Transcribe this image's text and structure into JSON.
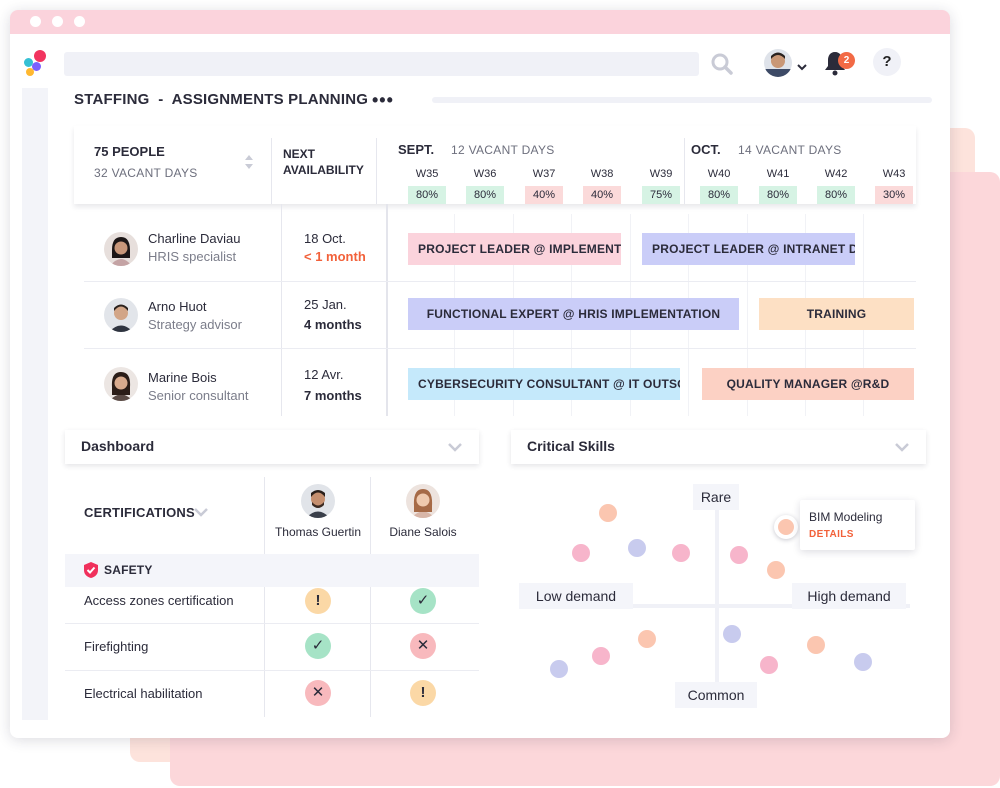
{
  "colors": {
    "accent_orange": "#f2613a",
    "pct_green_bg": "#d6f3e4",
    "pct_red_bg": "#fbdada",
    "bar_pink": "#fbd3dc",
    "bar_lavender": "#cacdf8",
    "bar_peach": "#fde0c4",
    "bar_blue": "#c5e9fb",
    "bar_salmon": "#fcd1c4"
  },
  "header": {
    "notifications_count": "2",
    "help_label": "?"
  },
  "page": {
    "title": "STAFFING  -  ASSIGNMENTS PLANNING",
    "more_label": "•••"
  },
  "planning": {
    "people_count": "75 PEOPLE",
    "people_vacant": "32 VACANT DAYS",
    "next_availability": "NEXT AVAILABILITY",
    "months": [
      {
        "name": "SEPT.",
        "vacant": "12 VACANT DAYS"
      },
      {
        "name": "OCT.",
        "vacant": "14 VACANT DAYS"
      }
    ],
    "weeks": [
      {
        "label": "W35",
        "pct": "80%",
        "level": "good"
      },
      {
        "label": "W36",
        "pct": "80%",
        "level": "good"
      },
      {
        "label": "W37",
        "pct": "40%",
        "level": "low"
      },
      {
        "label": "W38",
        "pct": "40%",
        "level": "low"
      },
      {
        "label": "W39",
        "pct": "75%",
        "level": "good"
      },
      {
        "label": "W40",
        "pct": "80%",
        "level": "good"
      },
      {
        "label": "W41",
        "pct": "80%",
        "level": "good"
      },
      {
        "label": "W42",
        "pct": "80%",
        "level": "good"
      },
      {
        "label": "W43",
        "pct": "30%",
        "level": "low"
      }
    ],
    "people": [
      {
        "name": "Charline Daviau",
        "role": "HRIS specialist",
        "date": "18 Oct.",
        "duration": "< 1 month",
        "urgent": true,
        "assignments": [
          {
            "label": "PROJECT LEADER @ IMPLEMENTAT...",
            "color": "pink"
          },
          {
            "label": "PROJECT LEADER @ INTRANET DEP...",
            "color": "lavender"
          }
        ]
      },
      {
        "name": "Arno Huot",
        "role": "Strategy advisor",
        "date": "25 Jan.",
        "duration": "4 months",
        "urgent": false,
        "assignments": [
          {
            "label": "FUNCTIONAL EXPERT @ HRIS IMPLEMENTATION",
            "color": "lavender"
          },
          {
            "label": "TRAINING",
            "color": "peach"
          }
        ]
      },
      {
        "name": "Marine Bois",
        "role": "Senior consultant",
        "date": "12 Avr.",
        "duration": "7 months",
        "urgent": false,
        "assignments": [
          {
            "label": "CYBERSECURITY CONSULTANT @ IT OUTSOU...",
            "color": "blue"
          },
          {
            "label": "QUALITY MANAGER @R&D",
            "color": "salmon"
          }
        ]
      }
    ]
  },
  "dashboard": {
    "title": "Dashboard",
    "certifications_label": "CERTIFICATIONS",
    "people": [
      "Thomas Guertin",
      "Diane Salois"
    ],
    "section": "SAFETY",
    "rows": [
      {
        "label": "Access zones certification",
        "status": [
          "warn",
          "ok"
        ]
      },
      {
        "label": "Firefighting",
        "status": [
          "ok",
          "no"
        ]
      },
      {
        "label": "Electrical habilitation",
        "status": [
          "no",
          "warn"
        ]
      }
    ]
  },
  "skills": {
    "title": "Critical Skills",
    "axis_top": "Rare",
    "axis_bottom": "Common",
    "axis_left": "Low demand",
    "axis_right": "High demand",
    "selected_skill": "BIM Modeling",
    "details_label": "DETAILS"
  }
}
